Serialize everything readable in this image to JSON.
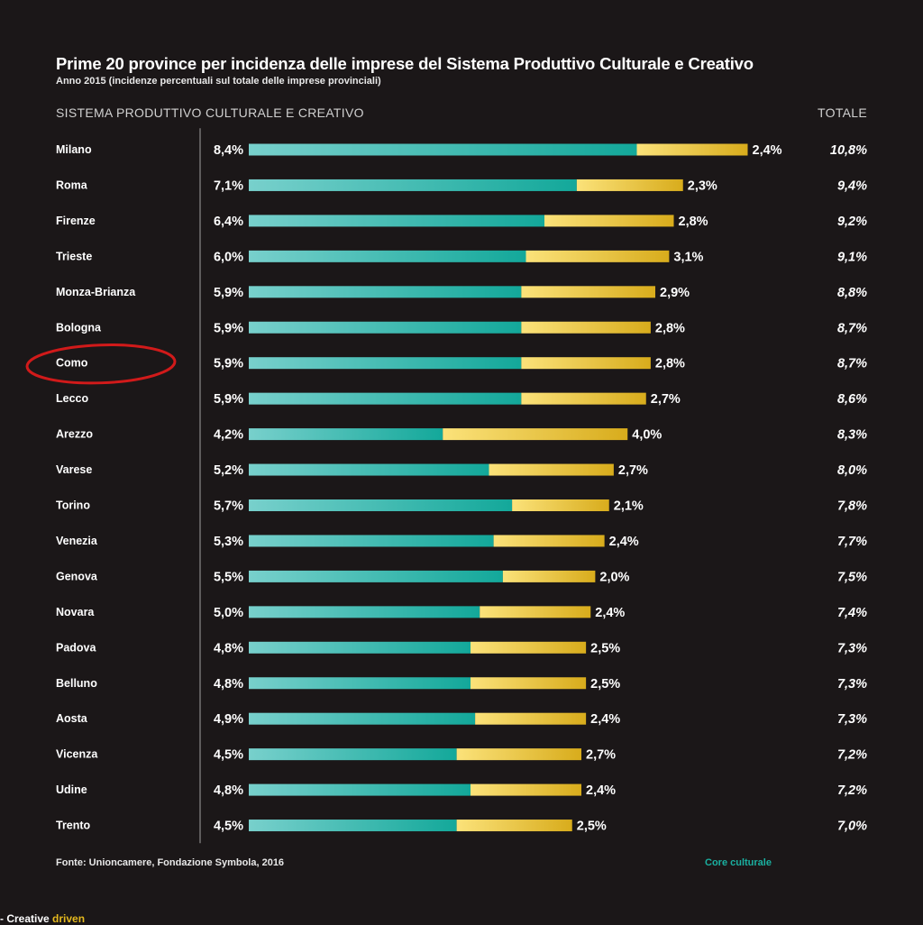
{
  "title": "Prime 20 province per incidenza delle imprese del Sistema Produttivo Culturale e Creativo",
  "subtitle": "Anno 2015 (incidenze percentuali sul totale delle imprese provinciali)",
  "section_label": "SISTEMA PRODUTTIVO CULTURALE E CREATIVO",
  "total_label": "TOTALE",
  "source": "Fonte: Unioncamere, Fondazione Symbola, 2016",
  "legend": {
    "core": "Core culturale"
  },
  "brand": {
    "part1": "- Creative ",
    "part2": "driven"
  },
  "colors": {
    "background": "#1b1718",
    "core_light": "#78d0cc",
    "core_dark": "#13a89a",
    "creative_light": "#fbe27a",
    "creative_dark": "#d8ac1c",
    "highlight": "#d11a1a",
    "legend_core": "#1ab0a0"
  },
  "highlighted_province": "Como",
  "chart_data": {
    "type": "bar",
    "orientation": "horizontal",
    "stacked": true,
    "title": "Prime 20 province per incidenza delle imprese del Sistema Produttivo Culturale e Creativo",
    "subtitle": "Anno 2015 (incidenze percentuali sul totale delle imprese provinciali)",
    "categories": [
      "Milano",
      "Roma",
      "Firenze",
      "Trieste",
      "Monza-Brianza",
      "Bologna",
      "Como",
      "Lecco",
      "Arezzo",
      "Varese",
      "Torino",
      "Venezia",
      "Genova",
      "Novara",
      "Padova",
      "Belluno",
      "Aosta",
      "Vicenza",
      "Udine",
      "Trento"
    ],
    "series": [
      {
        "name": "Core culturale",
        "values": [
          8.4,
          7.1,
          6.4,
          6.0,
          5.9,
          5.9,
          5.9,
          5.9,
          4.2,
          5.2,
          5.7,
          5.3,
          5.5,
          5.0,
          4.8,
          4.8,
          4.9,
          4.5,
          4.8,
          4.5
        ],
        "labels": [
          "8,4%",
          "7,1%",
          "6,4%",
          "6,0%",
          "5,9%",
          "5,9%",
          "5,9%",
          "5,9%",
          "4,2%",
          "5,2%",
          "5,7%",
          "5,3%",
          "5,5%",
          "5,0%",
          "4,8%",
          "4,8%",
          "4,9%",
          "4,5%",
          "4,8%",
          "4,5%"
        ]
      },
      {
        "values": [
          2.4,
          2.3,
          2.8,
          3.1,
          2.9,
          2.8,
          2.8,
          2.7,
          4.0,
          2.7,
          2.1,
          2.4,
          2.0,
          2.4,
          2.5,
          2.5,
          2.4,
          2.7,
          2.4,
          2.5
        ],
        "labels": [
          "2,4%",
          "2,3%",
          "2,8%",
          "3,1%",
          "2,9%",
          "2,8%",
          "2,8%",
          "2,7%",
          "4,0%",
          "2,7%",
          "2,1%",
          "2,4%",
          "2,0%",
          "2,4%",
          "2,5%",
          "2,5%",
          "2,4%",
          "2,7%",
          "2,4%",
          "2,5%"
        ]
      }
    ],
    "totals": [
      10.8,
      9.4,
      9.2,
      9.1,
      8.8,
      8.7,
      8.7,
      8.6,
      8.3,
      8.0,
      7.8,
      7.7,
      7.5,
      7.4,
      7.3,
      7.3,
      7.3,
      7.2,
      7.2,
      7.0
    ],
    "total_labels": [
      "10,8%",
      "9,4%",
      "9,2%",
      "9,1%",
      "8,8%",
      "8,7%",
      "8,7%",
      "8,6%",
      "8,3%",
      "8,0%",
      "7,8%",
      "7,7%",
      "7,5%",
      "7,4%",
      "7,3%",
      "7,3%",
      "7,3%",
      "7,2%",
      "7,2%",
      "7,0%"
    ],
    "xlim": [
      0,
      10.8
    ],
    "grid": false,
    "legend_position": "bottom-right"
  }
}
